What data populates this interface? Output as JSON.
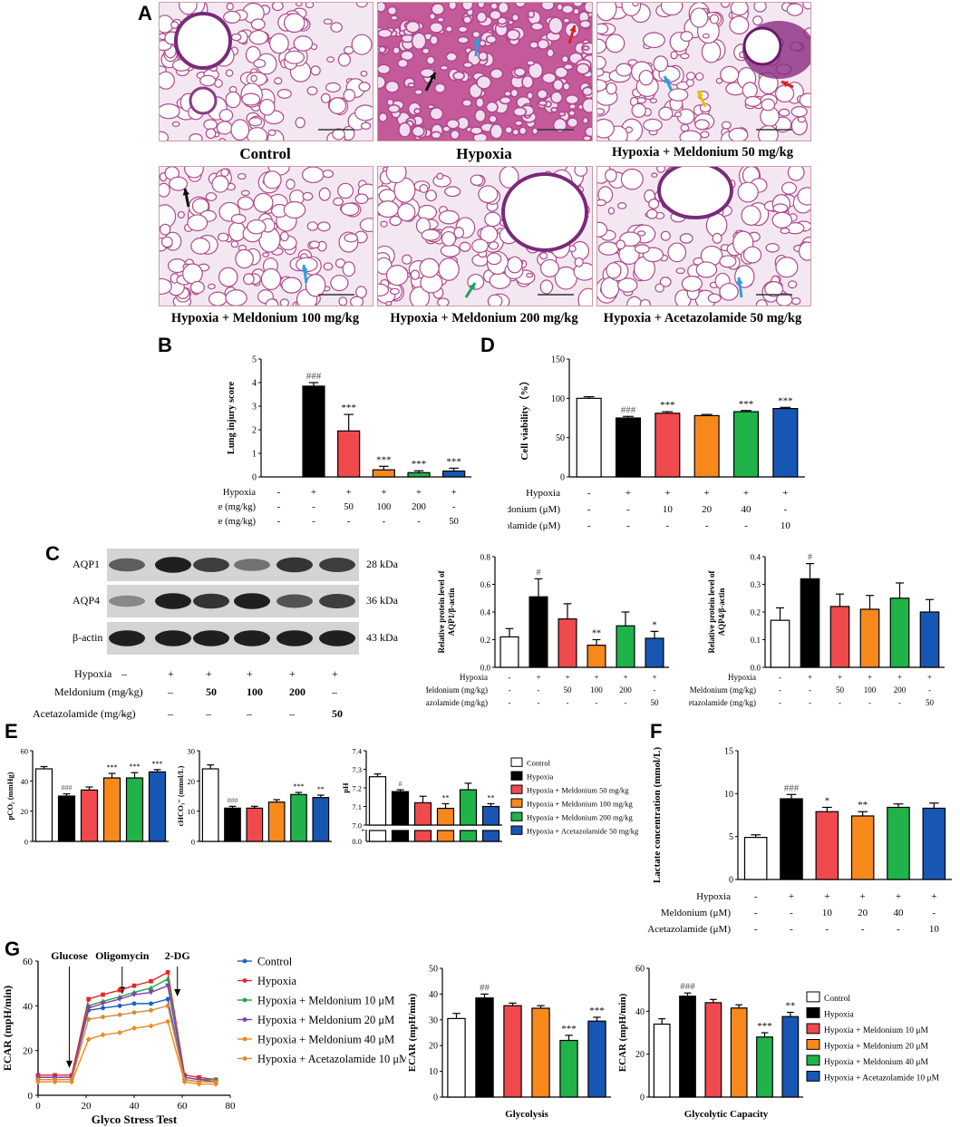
{
  "panel_letters": {
    "A": "A",
    "B": "B",
    "C": "C",
    "D": "D",
    "E": "E",
    "F": "F",
    "G": "G"
  },
  "histology": {
    "captions": [
      "Control",
      "Hypoxia",
      "Hypoxia + Meldonium 50 mg/kg",
      "Hypoxia + Meldonium 100 mg/kg",
      "Hypoxia + Meldonium 200 mg/kg",
      "Hypoxia + Acetazolamide 50 mg/kg"
    ],
    "arrow_colors": {
      "black": "#111111",
      "blue": "#2aa0e0",
      "red": "#e02020",
      "yellow": "#f0c000",
      "green": "#20a060"
    }
  },
  "colors": {
    "control": "#ffffff",
    "hypoxia": "#000000",
    "m_low": "#f04a4f",
    "m_mid": "#f7891c",
    "m_high": "#1fb34a",
    "acet": "#1856b4",
    "stroke": "#000000"
  },
  "blot": {
    "proteins": [
      "AQP1",
      "AQP4",
      "β-actin"
    ],
    "sizes": [
      "28 kDa",
      "36 kDa",
      "43 kDa"
    ],
    "row_labels": [
      "Hypoxia",
      "Meldonium (mg/kg)",
      "Acetazolamide (mg/kg)"
    ],
    "row_values": [
      [
        "–",
        "+",
        "+",
        "+",
        "+",
        "+"
      ],
      [
        "–",
        "–",
        "50",
        "100",
        "200",
        "–"
      ],
      [
        "–",
        "–",
        "–",
        "–",
        "–",
        "50"
      ]
    ]
  },
  "chart_data": [
    {
      "id": "B",
      "type": "bar",
      "ylabel": "Lung injury score",
      "ylim": [
        0,
        5
      ],
      "yticks": [
        "0",
        "1",
        "2",
        "3",
        "4",
        "5"
      ],
      "values": [
        0,
        3.85,
        1.95,
        0.3,
        0.18,
        0.25
      ],
      "errors": [
        0,
        0.15,
        0.7,
        0.15,
        0.08,
        0.12
      ],
      "annotations": [
        "",
        "###",
        "***",
        "***",
        "***",
        "***"
      ],
      "conditions": {
        "labels": [
          "Hypoxia",
          "Mildronate (mg/kg)",
          "Acetazolamide (mg/kg)"
        ],
        "rows": [
          [
            "-",
            "+",
            "+",
            "+",
            "+",
            "+"
          ],
          [
            "-",
            "-",
            "50",
            "100",
            "200",
            "-"
          ],
          [
            "-",
            "-",
            "-",
            "-",
            "-",
            "50"
          ]
        ]
      }
    },
    {
      "id": "D",
      "type": "bar",
      "ylabel": "Cell viability（%）",
      "ylim": [
        0,
        150
      ],
      "yticks": [
        "0",
        "50",
        "100",
        "150"
      ],
      "values": [
        100,
        75,
        81,
        78,
        83,
        87
      ],
      "errors": [
        2,
        2,
        2,
        1.5,
        1.5,
        1.5
      ],
      "annotations": [
        "",
        "###",
        "***",
        "",
        "***",
        "***"
      ],
      "conditions": {
        "labels": [
          "Hypoxia",
          "Meldonium (μM)",
          "Acetazolamide (μM)"
        ],
        "rows": [
          [
            "-",
            "+",
            "+",
            "+",
            "+",
            "+"
          ],
          [
            "-",
            "-",
            "10",
            "20",
            "40",
            "-"
          ],
          [
            "-",
            "-",
            "-",
            "-",
            "-",
            "10"
          ]
        ]
      }
    },
    {
      "id": "C-AQP1",
      "type": "bar",
      "ylabel": "Relative protein level of AQP1/β-actin",
      "ylim": [
        0,
        0.8
      ],
      "yticks": [
        "0.0",
        "0.2",
        "0.4",
        "0.6",
        "0.8"
      ],
      "values": [
        0.22,
        0.51,
        0.35,
        0.16,
        0.3,
        0.21
      ],
      "errors": [
        0.06,
        0.13,
        0.11,
        0.04,
        0.1,
        0.05
      ],
      "annotations": [
        "",
        "#",
        "",
        "**",
        "",
        "*"
      ],
      "conditions": {
        "labels": [
          "Hypoxia",
          "Meldonium (mg/kg)",
          "Acetazolamide (mg/kg)"
        ],
        "rows": [
          [
            "-",
            "+",
            "+",
            "+",
            "+",
            "+"
          ],
          [
            "-",
            "-",
            "50",
            "100",
            "200",
            "-"
          ],
          [
            "-",
            "-",
            "-",
            "-",
            "-",
            "50"
          ]
        ]
      }
    },
    {
      "id": "C-AQP4",
      "type": "bar",
      "ylabel": "Relative protein level of AQP4/β-actin",
      "ylim": [
        0,
        0.4
      ],
      "yticks": [
        "0.0",
        "0.1",
        "0.2",
        "0.3",
        "0.4"
      ],
      "values": [
        0.17,
        0.32,
        0.22,
        0.21,
        0.25,
        0.2
      ],
      "errors": [
        0.045,
        0.055,
        0.045,
        0.05,
        0.055,
        0.045
      ],
      "annotations": [
        "",
        "#",
        "",
        "",
        "",
        ""
      ],
      "conditions": {
        "labels": [
          "Hypoxia",
          "Meldonium (mg/kg)",
          "Acetazolamide (mg/kg)"
        ],
        "rows": [
          [
            "-",
            "+",
            "+",
            "+",
            "+",
            "+"
          ],
          [
            "-",
            "-",
            "50",
            "100",
            "200",
            "-"
          ],
          [
            "-",
            "-",
            "-",
            "-",
            "-",
            "50"
          ]
        ]
      }
    },
    {
      "id": "E-pCO2",
      "type": "bar",
      "ylabel": "pCO₂ (mmHg)",
      "ylim": [
        0,
        60
      ],
      "yticks": [
        "0",
        "20",
        "40",
        "60"
      ],
      "values": [
        48,
        30,
        34,
        42,
        42,
        46
      ],
      "errors": [
        1.5,
        1.5,
        2,
        3,
        3.5,
        1.5
      ],
      "annotations": [
        "",
        "###",
        "",
        "***",
        "***",
        "***"
      ]
    },
    {
      "id": "E-cHCO3",
      "type": "bar",
      "ylabel": "cHCO₃⁻ (mmol/L)",
      "ylim": [
        0,
        30
      ],
      "yticks": [
        "0",
        "10",
        "20",
        "30"
      ],
      "values": [
        24,
        11,
        11,
        13,
        15.5,
        14.5
      ],
      "errors": [
        1.3,
        0.6,
        0.6,
        0.8,
        0.7,
        0.8
      ],
      "annotations": [
        "",
        "###",
        "",
        "",
        "***",
        "**"
      ]
    },
    {
      "id": "E-pH",
      "type": "bar",
      "ylabel": "pH",
      "ylim": [
        7.0,
        7.4
      ],
      "broken_axis_base": "0.0",
      "yticks": [
        "7.0",
        "7.1",
        "7.2",
        "7.3",
        "7.4"
      ],
      "values": [
        7.26,
        7.18,
        7.12,
        7.09,
        7.19,
        7.1
      ],
      "errors": [
        0.015,
        0.01,
        0.035,
        0.025,
        0.035,
        0.015
      ],
      "annotations": [
        "",
        "#",
        "",
        "**",
        "",
        "**"
      ],
      "legend": [
        "Control",
        "Hypoxia",
        "Hypoxia + Meldonium 50 mg/kg",
        "Hypoxia + Meldonium 100 mg/kg",
        "Hypoxia + Meldonium 200 mg/kg",
        "Hypoxia + Acetazolamide 50 mg/kg"
      ]
    },
    {
      "id": "F",
      "type": "bar",
      "ylabel": "Lactate concentration (mmol/L)",
      "ylim": [
        0,
        15
      ],
      "yticks": [
        "0",
        "5",
        "10",
        "15"
      ],
      "values": [
        4.9,
        9.4,
        7.9,
        7.4,
        8.4,
        8.3
      ],
      "errors": [
        0.3,
        0.5,
        0.5,
        0.5,
        0.4,
        0.6
      ],
      "annotations": [
        "",
        "###",
        "*",
        "**",
        "",
        ""
      ],
      "conditions": {
        "labels": [
          "Hypoxia",
          "Meldonium (μM)",
          "Acetazolamide (μM)"
        ],
        "rows": [
          [
            "-",
            "+",
            "+",
            "+",
            "+",
            "+"
          ],
          [
            "-",
            "-",
            "10",
            "20",
            "40",
            "-"
          ],
          [
            "-",
            "-",
            "-",
            "-",
            "-",
            "10"
          ]
        ]
      }
    },
    {
      "id": "G-trace",
      "type": "line",
      "xlabel": "Glyco Stress Test",
      "ylabel": "ECAR (mpH/min)",
      "xlim": [
        0,
        80
      ],
      "ylim": [
        0,
        60
      ],
      "xticks": [
        "0",
        "20",
        "40",
        "60",
        "80"
      ],
      "yticks": [
        "0",
        "20",
        "40",
        "60"
      ],
      "injections": [
        "Glucose",
        "Oligomycin",
        "2-DG"
      ],
      "x": [
        0,
        7,
        14,
        21,
        27,
        34,
        40,
        47,
        54,
        61,
        67,
        74
      ],
      "series": [
        {
          "name": "Control",
          "values": [
            8,
            8,
            8,
            38,
            39,
            40,
            41,
            41,
            43,
            7,
            6,
            6
          ]
        },
        {
          "name": "Hypoxia",
          "values": [
            9,
            9,
            9,
            43,
            45,
            47,
            49,
            51,
            55,
            9,
            8,
            7
          ]
        },
        {
          "name": "Hypoxia + Meldonium 10 μM",
          "values": [
            8,
            8,
            8,
            40,
            42,
            44,
            46,
            48,
            52,
            8,
            7,
            7
          ]
        },
        {
          "name": "Hypoxia + Meldonium 20 μM",
          "values": [
            8,
            8,
            8,
            39,
            41,
            43,
            45,
            46,
            49,
            8,
            7,
            6
          ]
        },
        {
          "name": "Hypoxia + Meldonium 40 μM",
          "values": [
            6,
            6,
            6,
            25,
            27,
            28,
            30,
            31,
            33,
            6,
            5,
            5
          ]
        },
        {
          "name": "Hypoxia + Acetazolamide 10 μM",
          "values": [
            7,
            7,
            7,
            34,
            35,
            36,
            37,
            38,
            40,
            7,
            6,
            6
          ]
        }
      ]
    },
    {
      "id": "G-glycolysis",
      "type": "bar",
      "xlabel": "Glycolysis",
      "ylabel": "ECAR (mpH/min)",
      "ylim": [
        0,
        50
      ],
      "yticks": [
        "0",
        "10",
        "20",
        "30",
        "40",
        "50"
      ],
      "values": [
        30.5,
        38.5,
        35.5,
        34.5,
        22,
        29.5
      ],
      "errors": [
        2,
        1.5,
        1,
        1,
        2,
        1.5
      ],
      "annotations": [
        "",
        "##",
        "",
        "",
        "***",
        "***"
      ]
    },
    {
      "id": "G-capacity",
      "type": "bar",
      "xlabel": "Glycolytic Capacity",
      "ylabel": "ECAR (mpH/min)",
      "ylim": [
        0,
        60
      ],
      "yticks": [
        "0",
        "20",
        "40",
        "60"
      ],
      "values": [
        34,
        47,
        44,
        41.5,
        28,
        37.5
      ],
      "errors": [
        2.5,
        1.5,
        1.5,
        1.5,
        2,
        2
      ],
      "annotations": [
        "",
        "###",
        "",
        "",
        "***",
        "**"
      ],
      "legend": [
        "Control",
        "Hypoxia",
        "Hypoxia + Meldonium 10 μM",
        "Hypoxia + Meldonium 20 μM",
        "Hypoxia + Meldonium 40 μM",
        "Hypoxia + Acetazolamide 10 μM"
      ]
    }
  ]
}
